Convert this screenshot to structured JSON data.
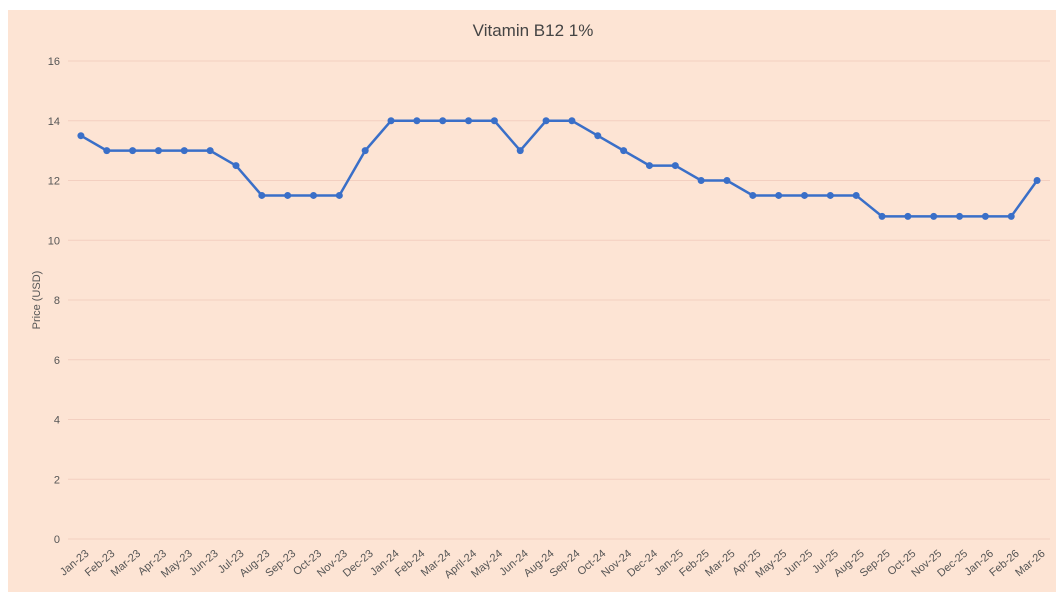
{
  "chart_data": {
    "type": "line",
    "title": "Vitamin B12 1%",
    "y_label": "Price (USD)",
    "categories": [
      "Jan-23",
      "Feb-23",
      "Mar-23",
      "Apr-23",
      "May-23",
      "Jun-23",
      "Jul-23",
      "Aug-23",
      "Sep-23",
      "Oct-23",
      "Nov-23",
      "Dec-23",
      "Jan-24",
      "Feb-24",
      "Mar-24",
      "April-24",
      "May-24",
      "Jun-24",
      "Aug-24",
      "Sep-24",
      "Oct-24",
      "Nov-24",
      "Dec-24",
      "Jan-25",
      "Feb-25",
      "Mar-25",
      "Apr-25",
      "May-25",
      "Jun-25",
      "Jul-25",
      "Aug-25",
      "Sep-25",
      "Oct-25",
      "Nov-25",
      "Dec-25",
      "Jan-26",
      "Feb-26",
      "Mar-26"
    ],
    "values": [
      13.5,
      13,
      13,
      13,
      13,
      13,
      12.5,
      11.5,
      11.5,
      11.5,
      11.5,
      13,
      14,
      14,
      14,
      14,
      14,
      13,
      14,
      14,
      13.5,
      13,
      12.5,
      12.5,
      12,
      12,
      11.5,
      11.5,
      11.5,
      11.5,
      11.5,
      10.8,
      10.8,
      10.8,
      10.8,
      10.8,
      10.8,
      12
    ],
    "color": "#3a6fc8",
    "background": "#fde4d4",
    "ylim": [
      0,
      16
    ],
    "yticks": [
      0,
      2,
      4,
      6,
      8,
      10,
      12,
      14,
      16
    ],
    "grid": true
  }
}
